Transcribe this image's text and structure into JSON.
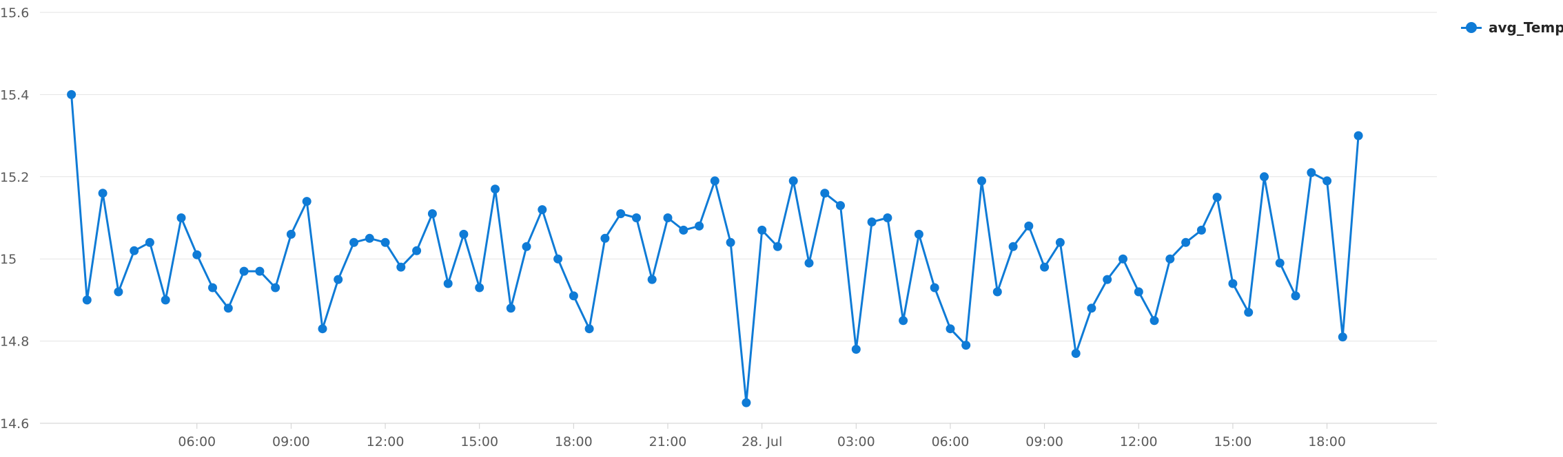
{
  "chart_data": {
    "type": "line",
    "x_tick_labels": [
      "06:00",
      "09:00",
      "12:00",
      "15:00",
      "18:00",
      "21:00",
      "28. Jul",
      "03:00",
      "06:00",
      "09:00",
      "12:00",
      "15:00",
      "18:00"
    ],
    "y_ticks": [
      14.6,
      14.8,
      15,
      15.2,
      15.4,
      15.6
    ],
    "y_tick_labels": [
      "14.6",
      "14.8",
      "15",
      "15.2",
      "15.4",
      "15.6"
    ],
    "ylim": [
      14.6,
      15.6
    ],
    "x_start": "2021-07-27T02:00",
    "x_step_minutes": 30,
    "x_range": [
      "2021-07-27T01:00",
      "2021-07-28T21:30"
    ],
    "grid": "horizontal",
    "legend_position": "top-right",
    "series": [
      {
        "name": "avg_Temp",
        "color": "#0f7bd6",
        "values": [
          15.4,
          14.9,
          15.16,
          14.92,
          15.02,
          15.04,
          14.9,
          15.1,
          15.01,
          14.93,
          14.88,
          14.97,
          14.97,
          14.93,
          15.06,
          15.14,
          14.83,
          14.95,
          15.04,
          15.05,
          15.04,
          14.98,
          15.02,
          15.11,
          14.94,
          15.06,
          14.93,
          15.17,
          14.88,
          15.03,
          15.12,
          15.0,
          14.91,
          14.83,
          15.05,
          15.11,
          15.1,
          14.95,
          15.1,
          15.07,
          15.08,
          15.19,
          15.04,
          14.65,
          15.07,
          15.03,
          15.19,
          14.99,
          15.16,
          15.13,
          14.78,
          15.09,
          15.1,
          14.85,
          15.06,
          14.93,
          14.83,
          14.79,
          15.19,
          14.92,
          15.03,
          15.08,
          14.98,
          15.04,
          14.77,
          14.88,
          14.95,
          15.0,
          14.92,
          14.85,
          15.0,
          15.04,
          15.07,
          15.15,
          14.94,
          14.87,
          15.2,
          14.99,
          14.91,
          15.21,
          15.19,
          14.81,
          15.3
        ]
      }
    ]
  }
}
